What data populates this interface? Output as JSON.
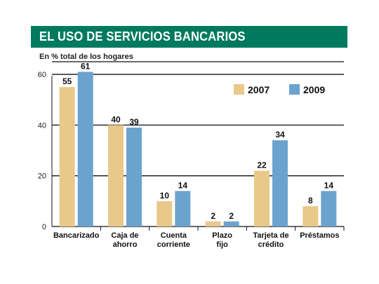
{
  "chart_data": {
    "type": "bar",
    "title": "EL USO DE SERVICIOS BANCARIOS",
    "subtitle": "En % total de los hogares",
    "categories": [
      [
        "Bancarizado"
      ],
      [
        "Caja de",
        "ahorro"
      ],
      [
        "Cuenta",
        "corriente"
      ],
      [
        "Plazo",
        "fijo"
      ],
      [
        "Tarjeta de",
        "crédito"
      ],
      [
        "Préstamos"
      ]
    ],
    "series": [
      {
        "name": "2007",
        "color": "#e8c98a",
        "values": [
          55,
          40,
          10,
          2,
          22,
          8
        ]
      },
      {
        "name": "2009",
        "color": "#6ba3cf",
        "values": [
          61,
          39,
          14,
          2,
          34,
          14
        ]
      }
    ],
    "ylim": [
      0,
      65
    ],
    "yticks": [
      0,
      20,
      40,
      60
    ],
    "grid": true,
    "legend_position": "top-right",
    "title_bar_color": "#007a5e"
  }
}
